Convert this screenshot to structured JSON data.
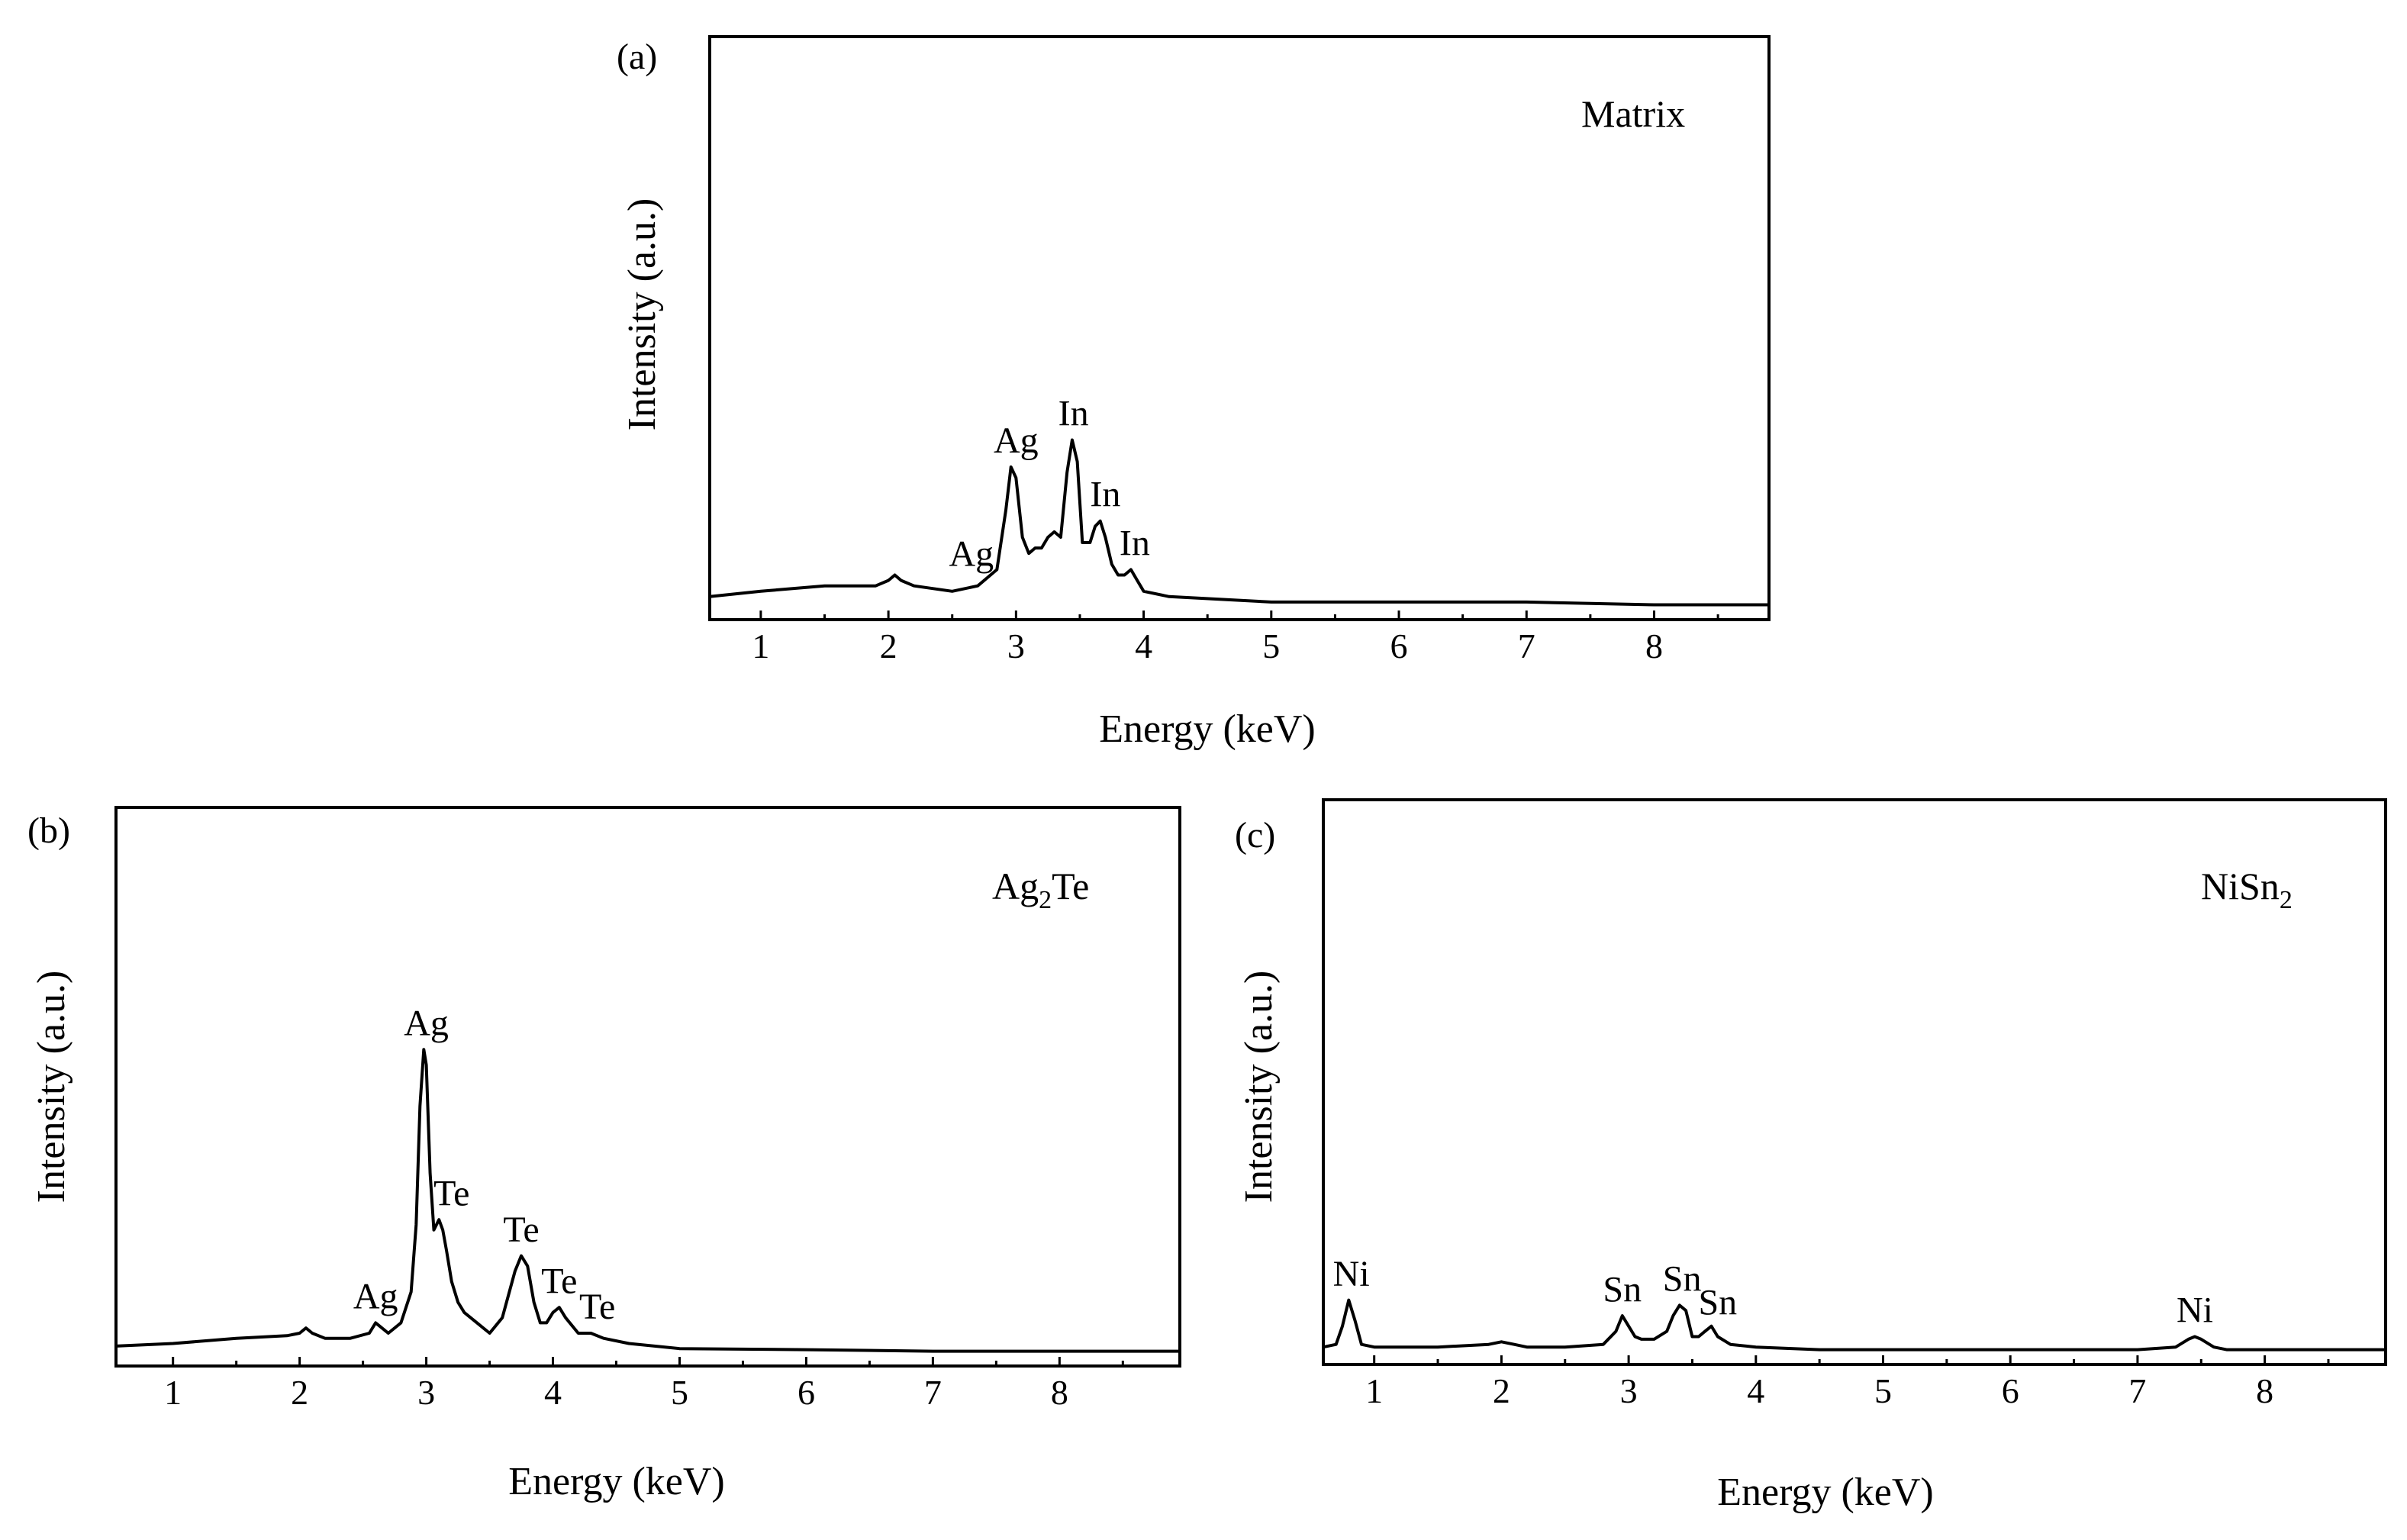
{
  "chart_data": [
    {
      "type": "line",
      "panel_label": "(a)",
      "title": "Matrix",
      "xlabel": "Energy (keV)",
      "ylabel": "Intensity (a.u.)",
      "xlim": [
        0.6,
        8.9
      ],
      "ylim": [
        0,
        100
      ],
      "xticks": [
        "1",
        "2",
        "3",
        "4",
        "5",
        "6",
        "7",
        "8"
      ],
      "series": [
        {
          "name": "Matrix",
          "x": [
            0.6,
            1.0,
            1.5,
            1.9,
            2.0,
            2.05,
            2.1,
            2.2,
            2.5,
            2.7,
            2.85,
            2.92,
            2.96,
            3.0,
            3.05,
            3.1,
            3.15,
            3.2,
            3.25,
            3.3,
            3.35,
            3.4,
            3.44,
            3.48,
            3.52,
            3.58,
            3.62,
            3.66,
            3.7,
            3.75,
            3.8,
            3.85,
            3.9,
            3.95,
            4.0,
            4.2,
            5.0,
            6.0,
            7.0,
            8.0,
            8.9
          ],
          "y": [
            2,
            3,
            4,
            4,
            5,
            6,
            5,
            4,
            3,
            4,
            7,
            18,
            26,
            24,
            13,
            10,
            11,
            11,
            13,
            14,
            13,
            25,
            31,
            27,
            12,
            12,
            15,
            16,
            13,
            8,
            6,
            6,
            7,
            5,
            3,
            2,
            1,
            1,
            1,
            0.5,
            0.5
          ]
        }
      ],
      "annotations": [
        {
          "text": "Ag",
          "x": 2.65,
          "y": 6
        },
        {
          "text": "Ag",
          "x": 3.0,
          "y": 27
        },
        {
          "text": "In",
          "x": 3.45,
          "y": 32
        },
        {
          "text": "In",
          "x": 3.7,
          "y": 17
        },
        {
          "text": "In",
          "x": 3.93,
          "y": 8
        }
      ]
    },
    {
      "type": "line",
      "panel_label": "(b)",
      "title": "Ag",
      "title_subscript": "2",
      "title_suffix": "Te",
      "xlabel": "Energy (keV)",
      "ylabel": "Intensity (a.u.)",
      "xlim": [
        0.55,
        8.95
      ],
      "ylim": [
        0,
        100
      ],
      "xticks": [
        "1",
        "2",
        "3",
        "4",
        "5",
        "6",
        "7",
        "8"
      ],
      "series": [
        {
          "name": "Ag2Te",
          "x": [
            0.55,
            1.0,
            1.5,
            1.9,
            2.0,
            2.05,
            2.1,
            2.2,
            2.4,
            2.55,
            2.6,
            2.65,
            2.7,
            2.8,
            2.88,
            2.92,
            2.95,
            2.98,
            3.0,
            3.03,
            3.06,
            3.1,
            3.13,
            3.16,
            3.2,
            3.25,
            3.3,
            3.4,
            3.5,
            3.6,
            3.7,
            3.75,
            3.8,
            3.85,
            3.9,
            3.95,
            4.0,
            4.05,
            4.1,
            4.2,
            4.3,
            4.4,
            4.6,
            5.0,
            6.0,
            7.0,
            8.0,
            8.95
          ],
          "y": [
            1.5,
            2,
            3,
            3.5,
            4,
            5,
            4,
            3,
            3,
            4,
            6,
            5,
            4,
            6,
            12,
            25,
            48,
            59,
            56,
            35,
            24,
            26,
            24,
            20,
            14,
            10,
            8,
            6,
            4,
            7,
            16,
            19,
            17,
            10,
            6,
            6,
            8,
            9,
            7,
            4,
            4,
            3,
            2,
            1,
            0.8,
            0.5,
            0.5,
            0.5
          ]
        }
      ],
      "annotations": [
        {
          "text": "Ag",
          "x": 2.6,
          "y": 7
        },
        {
          "text": "Ag",
          "x": 3.0,
          "y": 60
        },
        {
          "text": "Te",
          "x": 3.2,
          "y": 27
        },
        {
          "text": "Te",
          "x": 3.75,
          "y": 20
        },
        {
          "text": "Te",
          "x": 4.05,
          "y": 10
        },
        {
          "text": "Te",
          "x": 4.35,
          "y": 5
        }
      ]
    },
    {
      "type": "line",
      "panel_label": "(c)",
      "title": "NiSn",
      "title_subscript": "2",
      "title_suffix": "",
      "xlabel": "Energy (keV)",
      "ylabel": "Intensity (a.u.)",
      "xlim": [
        0.6,
        8.95
      ],
      "ylim": [
        0,
        100
      ],
      "xticks": [
        "1",
        "2",
        "3",
        "4",
        "5",
        "6",
        "7",
        "8"
      ],
      "series": [
        {
          "name": "NiSn2",
          "x": [
            0.6,
            0.7,
            0.75,
            0.8,
            0.85,
            0.9,
            1.0,
            1.5,
            1.9,
            2.0,
            2.1,
            2.2,
            2.5,
            2.8,
            2.9,
            2.95,
            3.0,
            3.05,
            3.1,
            3.2,
            3.3,
            3.35,
            3.4,
            3.45,
            3.5,
            3.55,
            3.6,
            3.65,
            3.7,
            3.8,
            4.0,
            4.5,
            5.0,
            6.0,
            7.0,
            7.3,
            7.4,
            7.45,
            7.5,
            7.6,
            7.7,
            8.0,
            8.95
          ],
          "y": [
            1,
            1.5,
            5,
            10,
            6,
            1.5,
            1,
            1,
            1.5,
            2,
            1.5,
            1,
            1,
            1.5,
            4,
            7,
            5,
            3,
            2.5,
            2.5,
            4,
            7,
            9,
            8,
            3,
            3,
            4,
            5,
            3,
            1.5,
            1,
            0.5,
            0.5,
            0.5,
            0.5,
            1,
            2.5,
            3,
            2.5,
            1,
            0.5,
            0.5,
            0.5
          ]
        }
      ],
      "annotations": [
        {
          "text": "Ni",
          "x": 0.82,
          "y": 11
        },
        {
          "text": "Sn",
          "x": 2.95,
          "y": 8
        },
        {
          "text": "Sn",
          "x": 3.42,
          "y": 10
        },
        {
          "text": "Sn",
          "x": 3.7,
          "y": 5.5
        },
        {
          "text": "Ni",
          "x": 7.45,
          "y": 4
        }
      ]
    }
  ]
}
